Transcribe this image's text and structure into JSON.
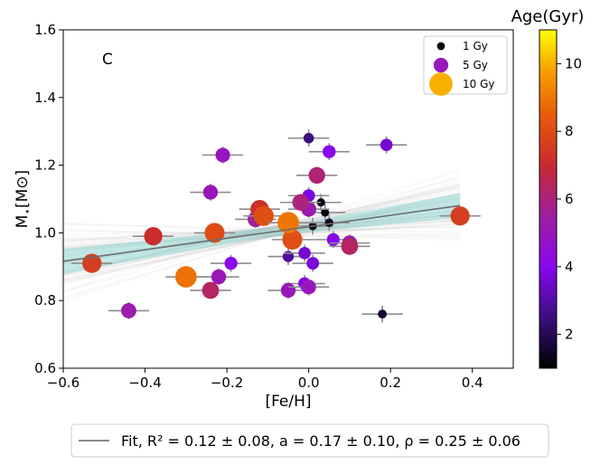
{
  "chart_data": {
    "type": "scatter",
    "panel_label": "C",
    "xlabel": "[Fe/H]",
    "ylabel": "M",
    "ylabel_sub": "⋆",
    "ylabel_unit": "[M⊙]",
    "xlim": [
      -0.6,
      0.5
    ],
    "ylim": [
      0.6,
      1.6
    ],
    "xticks": [
      -0.6,
      -0.4,
      -0.2,
      0.0,
      0.2,
      0.4
    ],
    "xtick_labels": [
      "−0.6",
      "−0.4",
      "−0.2",
      "0.0",
      "0.2",
      "0.4"
    ],
    "yticks": [
      0.6,
      0.8,
      1.0,
      1.2,
      1.4,
      1.6
    ],
    "ytick_labels": [
      "0.6",
      "0.8",
      "1.0",
      "1.2",
      "1.4",
      "1.6"
    ],
    "size_legend": [
      {
        "label": "1 Gy",
        "age": 1
      },
      {
        "label": "5 Gy",
        "age": 5
      },
      {
        "label": "10 Gy",
        "age": 10
      }
    ],
    "colorbar": {
      "title": "Age(Gyr)",
      "range": [
        1,
        11
      ],
      "ticks": [
        2,
        4,
        6,
        8,
        10
      ],
      "tick_labels": [
        "2",
        "4",
        "6",
        "8",
        "10"
      ]
    },
    "fit": {
      "legend_label": "Fit, R² = 0.12 ± 0.08, a = 0.17 ± 0.10,  ρ = 0.25 ± 0.06",
      "intercept": 1.018,
      "slope": 0.17,
      "x_range": [
        -0.6,
        0.37
      ],
      "line_color": "#6e6e6e",
      "band_color": "#5fc9c4"
    },
    "points": [
      {
        "feh": -0.53,
        "mass": 0.91,
        "age": 7.6
      },
      {
        "feh": -0.44,
        "mass": 0.77,
        "age": 5.3
      },
      {
        "feh": -0.38,
        "mass": 0.99,
        "age": 7.1
      },
      {
        "feh": -0.3,
        "mass": 0.87,
        "age": 8.9
      },
      {
        "feh": -0.23,
        "mass": 1.0,
        "age": 8.0
      },
      {
        "feh": -0.22,
        "mass": 0.87,
        "age": 5.1
      },
      {
        "feh": -0.24,
        "mass": 0.83,
        "age": 6.3
      },
      {
        "feh": -0.24,
        "mass": 1.12,
        "age": 5.0
      },
      {
        "feh": -0.21,
        "mass": 1.23,
        "age": 4.9
      },
      {
        "feh": -0.19,
        "mass": 0.91,
        "age": 4.0
      },
      {
        "feh": -0.13,
        "mass": 1.04,
        "age": 5.6
      },
      {
        "feh": -0.12,
        "mass": 1.07,
        "age": 7.2
      },
      {
        "feh": -0.11,
        "mass": 1.05,
        "age": 8.1
      },
      {
        "feh": -0.05,
        "mass": 1.03,
        "age": 9.0
      },
      {
        "feh": -0.04,
        "mass": 0.98,
        "age": 8.1
      },
      {
        "feh": -0.05,
        "mass": 0.83,
        "age": 5.0
      },
      {
        "feh": -0.05,
        "mass": 0.93,
        "age": 2.9
      },
      {
        "feh": -0.02,
        "mass": 1.09,
        "age": 6.0
      },
      {
        "feh": 0.0,
        "mass": 1.28,
        "age": 2.5
      },
      {
        "feh": 0.0,
        "mass": 1.11,
        "age": 3.8
      },
      {
        "feh": 0.0,
        "mass": 1.07,
        "age": 5.2
      },
      {
        "feh": 0.0,
        "mass": 0.84,
        "age": 5.0
      },
      {
        "feh": -0.01,
        "mass": 0.85,
        "age": 3.8
      },
      {
        "feh": -0.01,
        "mass": 0.94,
        "age": 3.6
      },
      {
        "feh": 0.01,
        "mass": 0.91,
        "age": 3.7
      },
      {
        "feh": 0.01,
        "mass": 1.02,
        "age": 1.2
      },
      {
        "feh": 0.02,
        "mass": 1.17,
        "age": 6.1
      },
      {
        "feh": 0.03,
        "mass": 1.09,
        "age": 1.3
      },
      {
        "feh": 0.04,
        "mass": 1.06,
        "age": 1.2
      },
      {
        "feh": 0.05,
        "mass": 1.03,
        "age": 1.4
      },
      {
        "feh": 0.05,
        "mass": 1.24,
        "age": 4.0
      },
      {
        "feh": 0.06,
        "mass": 0.98,
        "age": 3.9
      },
      {
        "feh": 0.1,
        "mass": 0.97,
        "age": 5.2
      },
      {
        "feh": 0.1,
        "mass": 0.96,
        "age": 6.3
      },
      {
        "feh": 0.18,
        "mass": 0.76,
        "age": 1.6
      },
      {
        "feh": 0.19,
        "mass": 1.26,
        "age": 3.6
      },
      {
        "feh": 0.37,
        "mass": 1.05,
        "age": 7.6
      }
    ]
  }
}
